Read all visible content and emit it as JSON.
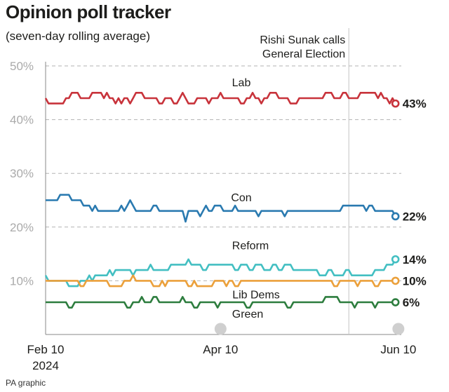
{
  "header": {
    "title": "Opinion poll tracker",
    "subtitle": "(seven-day rolling average)"
  },
  "footer": {
    "credit": "PA graphic"
  },
  "annotation": {
    "line1": "Rishi Sunak calls",
    "line2": "General Election",
    "x": 104
  },
  "x_ticks": [
    {
      "x": 0,
      "line1": "Feb 10",
      "line2": "2024"
    },
    {
      "x": 60,
      "line1": "Apr 10",
      "line2": ""
    },
    {
      "x": 121,
      "line1": "Jun 10",
      "line2": ""
    }
  ],
  "chart_data": {
    "type": "line",
    "title": "Opinion poll tracker",
    "subtitle": "(seven-day rolling average)",
    "x_unit": "days since Feb 10 2024",
    "xlim": [
      0,
      122
    ],
    "ylim": [
      0,
      50
    ],
    "y_ticks": [
      {
        "value": 10,
        "label": "10%"
      },
      {
        "value": 20,
        "label": "20%"
      },
      {
        "value": 30,
        "label": "30%"
      },
      {
        "value": 40,
        "label": "40%"
      },
      {
        "value": 50,
        "label": "50%"
      }
    ],
    "grid": true,
    "series": [
      {
        "name": "Lab",
        "label": "Lab",
        "end_label": "43%",
        "color": "#c8333b",
        "values": [
          44,
          43,
          43,
          43,
          43,
          43,
          43,
          44,
          44,
          45,
          45,
          45,
          44,
          44,
          44,
          44,
          45,
          45,
          45,
          45,
          44,
          45,
          44,
          44,
          43,
          44,
          43,
          44,
          44,
          43,
          44,
          45,
          45,
          45,
          44,
          44,
          44,
          44,
          44,
          43,
          43,
          44,
          44,
          44,
          43,
          43,
          44,
          45,
          44,
          43,
          43,
          43,
          44,
          44,
          44,
          44,
          43,
          44,
          44,
          44,
          45,
          44,
          44,
          44,
          44,
          44,
          44,
          43,
          43,
          44,
          44,
          45,
          44,
          44,
          43,
          44,
          44,
          45,
          45,
          45,
          44,
          44,
          44,
          44,
          43,
          43,
          43,
          44,
          44,
          44,
          44,
          44,
          44,
          44,
          44,
          44,
          45,
          45,
          45,
          44,
          44,
          44,
          45,
          45,
          44,
          44,
          44,
          44,
          45,
          45,
          45,
          45,
          45,
          45,
          44,
          45,
          44,
          44,
          43,
          44,
          43
        ]
      },
      {
        "name": "Con",
        "label": "Con",
        "end_label": "22%",
        "color": "#2a7ab0",
        "values": [
          25,
          25,
          25,
          25,
          25,
          26,
          26,
          26,
          26,
          25,
          25,
          25,
          25,
          24,
          24,
          24,
          23,
          24,
          23,
          23,
          23,
          23,
          23,
          23,
          23,
          23,
          24,
          23,
          24,
          25,
          24,
          23,
          23,
          23,
          23,
          23,
          23,
          24,
          24,
          23,
          23,
          23,
          23,
          23,
          23,
          23,
          23,
          23,
          21,
          23,
          23,
          23,
          23,
          22,
          23,
          24,
          23,
          23,
          24,
          24,
          24,
          23,
          23,
          23,
          23,
          24,
          23,
          23,
          23,
          23,
          23,
          23,
          23,
          22,
          23,
          23,
          23,
          23,
          23,
          23,
          23,
          23,
          22,
          23,
          23,
          23,
          23,
          23,
          23,
          23,
          23,
          23,
          23,
          23,
          23,
          23,
          23,
          23,
          23,
          23,
          23,
          23,
          24,
          24,
          24,
          24,
          24,
          24,
          24,
          24,
          23,
          24,
          24,
          23,
          23,
          23,
          23,
          23,
          23,
          23,
          22
        ]
      },
      {
        "name": "Reform",
        "label": "Reform",
        "end_label": "14%",
        "color": "#43bfc2",
        "values": [
          11,
          10,
          10,
          10,
          10,
          10,
          10,
          10,
          9,
          9,
          9,
          9,
          10,
          10,
          10,
          11,
          10,
          11,
          11,
          11,
          11,
          11,
          12,
          11,
          12,
          12,
          12,
          12,
          12,
          12,
          11,
          12,
          12,
          12,
          12,
          12,
          13,
          12,
          12,
          12,
          12,
          12,
          12,
          13,
          13,
          13,
          13,
          13,
          13,
          14,
          13,
          13,
          13,
          13,
          12,
          12,
          13,
          13,
          13,
          13,
          13,
          13,
          13,
          13,
          13,
          12,
          12,
          13,
          13,
          13,
          12,
          12,
          13,
          13,
          13,
          12,
          12,
          12,
          13,
          13,
          12,
          12,
          13,
          13,
          13,
          12,
          12,
          12,
          12,
          12,
          12,
          12,
          12,
          12,
          11,
          11,
          11,
          12,
          12,
          11,
          11,
          11,
          11,
          12,
          12,
          11,
          11,
          11,
          11,
          11,
          11,
          11,
          11,
          12,
          12,
          12,
          12,
          13,
          13,
          13,
          14
        ]
      },
      {
        "name": "Lib Dems",
        "label": "Lib Dems",
        "end_label": "10%",
        "color": "#eba03b",
        "values": [
          10,
          10,
          10,
          10,
          10,
          10,
          10,
          10,
          10,
          10,
          10,
          10,
          9,
          9,
          10,
          10,
          10,
          10,
          10,
          10,
          10,
          10,
          9,
          9,
          9,
          9,
          9,
          10,
          10,
          10,
          11,
          10,
          10,
          10,
          10,
          10,
          10,
          9,
          9,
          9,
          10,
          9,
          10,
          10,
          10,
          10,
          10,
          10,
          10,
          9,
          9,
          10,
          9,
          9,
          9,
          9,
          9,
          9,
          10,
          10,
          10,
          10,
          9,
          10,
          10,
          9,
          9,
          10,
          10,
          10,
          10,
          10,
          10,
          10,
          10,
          10,
          10,
          10,
          10,
          10,
          10,
          10,
          10,
          10,
          10,
          10,
          10,
          10,
          10,
          10,
          10,
          10,
          10,
          10,
          10,
          10,
          10,
          10,
          10,
          9,
          9,
          10,
          10,
          10,
          10,
          10,
          10,
          9,
          10,
          10,
          10,
          10,
          10,
          9,
          9,
          10,
          10,
          10,
          10,
          10,
          10
        ]
      },
      {
        "name": "Green",
        "label": "Green",
        "end_label": "6%",
        "color": "#2d7d3e",
        "values": [
          6,
          6,
          6,
          6,
          6,
          6,
          6,
          6,
          5,
          5,
          6,
          6,
          6,
          6,
          6,
          6,
          6,
          6,
          6,
          6,
          6,
          6,
          6,
          6,
          6,
          6,
          6,
          6,
          5,
          5,
          6,
          6,
          6,
          7,
          6,
          6,
          6,
          7,
          7,
          6,
          6,
          6,
          6,
          6,
          6,
          6,
          6,
          7,
          6,
          6,
          6,
          5,
          5,
          6,
          6,
          6,
          6,
          6,
          6,
          5,
          6,
          6,
          6,
          6,
          6,
          6,
          6,
          6,
          6,
          5,
          5,
          6,
          6,
          6,
          6,
          6,
          6,
          6,
          6,
          6,
          6,
          6,
          6,
          5,
          5,
          6,
          6,
          6,
          6,
          6,
          6,
          6,
          6,
          6,
          6,
          6,
          7,
          7,
          7,
          7,
          7,
          6,
          6,
          6,
          6,
          6,
          5,
          6,
          6,
          6,
          6,
          6,
          6,
          5,
          6,
          6,
          6,
          6,
          6,
          6,
          6
        ]
      }
    ]
  }
}
